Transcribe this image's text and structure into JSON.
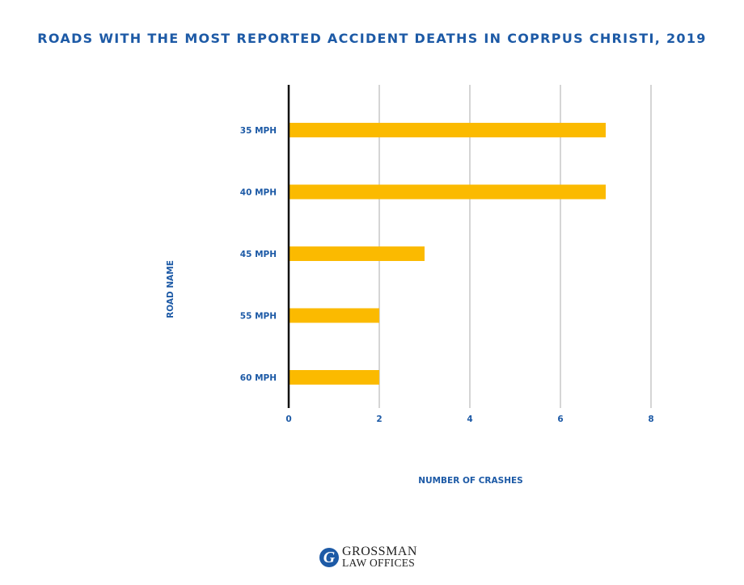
{
  "chart_data": {
    "type": "bar",
    "orientation": "horizontal",
    "title": "ROADS WITH THE MOST REPORTED ACCIDENT DEATHS IN COPRPUS CHRISTI, 2019",
    "xlabel": "NUMBER OF CRASHES",
    "ylabel": "ROAD NAME",
    "categories": [
      "35 MPH",
      "40 MPH",
      "45 MPH",
      "55 MPH",
      "60 MPH"
    ],
    "values": [
      7,
      7,
      3,
      2,
      2
    ],
    "xlim": [
      0,
      8
    ],
    "xticks": [
      "0",
      "2",
      "4",
      "6",
      "8"
    ],
    "grid": "vertical",
    "legend": "none",
    "bar_color": "#fbba00",
    "text_color": "#1d5aa6"
  },
  "logo": {
    "mark": "G",
    "line1": "GROSSMAN",
    "line2": "LAW OFFICES"
  }
}
